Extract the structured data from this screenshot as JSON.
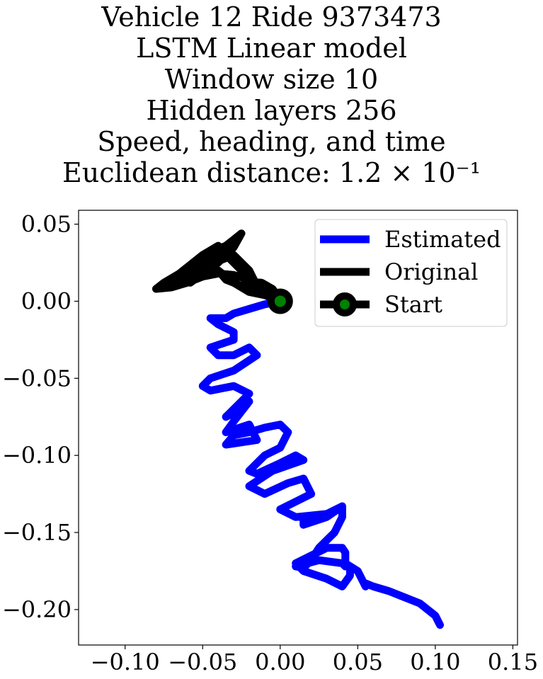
{
  "chart_data": {
    "type": "line",
    "title_lines": [
      "Vehicle 12 Ride 9373473",
      "LSTM Linear model",
      "Window size 10",
      "Hidden layers 256",
      "Speed, heading, and time",
      "Euclidean distance: 1.2 × 10⁻¹"
    ],
    "xlim": [
      -0.13,
      0.153
    ],
    "ylim": [
      -0.223,
      0.059
    ],
    "xticks": [
      -0.1,
      -0.05,
      0.0,
      0.05,
      0.1,
      0.15
    ],
    "xtick_labels": [
      "−0.10",
      "−0.05",
      "0.00",
      "0.05",
      "0.10",
      "0.15"
    ],
    "yticks": [
      0.05,
      0.0,
      -0.05,
      -0.1,
      -0.15,
      -0.2
    ],
    "ytick_labels": [
      "0.05",
      "0.00",
      "−0.05",
      "−0.10",
      "−0.15",
      "−0.20"
    ],
    "legend": {
      "placement": "top-right",
      "entries": [
        "Estimated",
        "Original",
        "Start"
      ]
    },
    "colors": {
      "estimated": "#0000ff",
      "original": "#000000",
      "start_marker_face": "#008000",
      "start_marker_edge": "#000000"
    },
    "series": [
      {
        "name": "Estimated",
        "x": [
          0.0,
          -0.01,
          -0.02,
          -0.03,
          -0.035,
          -0.045,
          -0.04,
          -0.03,
          -0.03,
          -0.045,
          -0.04,
          -0.03,
          -0.02,
          -0.015,
          -0.03,
          -0.045,
          -0.05,
          -0.045,
          -0.03,
          -0.02,
          -0.03,
          -0.035,
          -0.025,
          -0.02,
          -0.03,
          -0.035,
          -0.02,
          -0.015,
          -0.035,
          -0.03,
          -0.02,
          -0.01,
          0.0,
          0.005,
          0.0,
          -0.01,
          -0.02,
          -0.015,
          0.0,
          0.01,
          0.015,
          -0.005,
          -0.02,
          -0.01,
          0.005,
          0.015,
          0.02,
          0.01,
          0.0,
          0.01,
          0.03,
          0.04,
          0.03,
          0.015,
          0.015,
          0.03,
          0.04,
          0.04,
          0.035,
          0.025,
          0.02,
          0.015,
          0.01,
          0.025,
          0.04,
          0.042,
          0.042,
          0.04,
          0.03,
          0.02,
          0.01,
          0.015,
          0.03,
          0.04,
          0.045,
          0.045,
          0.042,
          0.05,
          0.055,
          0.055,
          0.06,
          0.07,
          0.08,
          0.09,
          0.1,
          0.103
        ],
        "y": [
          0.0,
          -0.002,
          -0.005,
          -0.008,
          -0.011,
          -0.011,
          -0.015,
          -0.02,
          -0.025,
          -0.03,
          -0.035,
          -0.035,
          -0.03,
          -0.035,
          -0.045,
          -0.05,
          -0.055,
          -0.058,
          -0.055,
          -0.06,
          -0.07,
          -0.075,
          -0.07,
          -0.065,
          -0.078,
          -0.085,
          -0.08,
          -0.09,
          -0.093,
          -0.087,
          -0.085,
          -0.082,
          -0.08,
          -0.085,
          -0.095,
          -0.1,
          -0.11,
          -0.112,
          -0.105,
          -0.1,
          -0.103,
          -0.11,
          -0.12,
          -0.125,
          -0.118,
          -0.115,
          -0.125,
          -0.13,
          -0.135,
          -0.14,
          -0.138,
          -0.133,
          -0.138,
          -0.14,
          -0.145,
          -0.14,
          -0.133,
          -0.14,
          -0.15,
          -0.16,
          -0.168,
          -0.173,
          -0.172,
          -0.168,
          -0.17,
          -0.172,
          -0.163,
          -0.16,
          -0.16,
          -0.165,
          -0.17,
          -0.175,
          -0.18,
          -0.185,
          -0.178,
          -0.172,
          -0.17,
          -0.175,
          -0.185,
          -0.183,
          -0.185,
          -0.188,
          -0.192,
          -0.196,
          -0.204,
          -0.21
        ]
      },
      {
        "name": "Original",
        "x": [
          0.0,
          -0.005,
          -0.012,
          -0.02,
          -0.03,
          -0.04,
          -0.05,
          -0.06,
          -0.07,
          -0.08,
          -0.075,
          -0.065,
          -0.055,
          -0.045,
          -0.035,
          -0.03,
          -0.025,
          -0.03,
          -0.04,
          -0.05,
          -0.058,
          -0.05,
          -0.04,
          -0.035,
          -0.03,
          -0.04,
          -0.05,
          -0.06,
          -0.07,
          -0.062,
          -0.055,
          -0.045,
          -0.04,
          -0.035,
          -0.03,
          -0.02,
          -0.015,
          -0.02,
          -0.03,
          -0.04,
          -0.05,
          -0.06,
          -0.07,
          -0.08,
          -0.07,
          -0.06,
          -0.05,
          -0.04,
          -0.03,
          -0.02,
          -0.015,
          -0.025,
          -0.035,
          -0.04,
          -0.03,
          -0.02,
          -0.01,
          -0.005,
          -0.015,
          -0.025,
          -0.02,
          -0.012,
          -0.005,
          -0.002,
          0.0
        ],
        "y": [
          0.0,
          0.006,
          0.01,
          0.014,
          0.017,
          0.018,
          0.016,
          0.012,
          0.009,
          0.008,
          0.012,
          0.018,
          0.026,
          0.032,
          0.036,
          0.04,
          0.044,
          0.035,
          0.025,
          0.018,
          0.012,
          0.018,
          0.026,
          0.032,
          0.038,
          0.03,
          0.022,
          0.016,
          0.01,
          0.016,
          0.024,
          0.03,
          0.034,
          0.03,
          0.025,
          0.015,
          0.01,
          0.02,
          0.03,
          0.026,
          0.02,
          0.016,
          0.012,
          0.008,
          0.014,
          0.022,
          0.03,
          0.036,
          0.026,
          0.016,
          0.008,
          0.01,
          0.014,
          0.02,
          0.012,
          0.006,
          0.004,
          0.002,
          0.006,
          0.01,
          0.013,
          0.012,
          0.008,
          0.004,
          0.0
        ]
      }
    ],
    "start_point": {
      "x": 0.0,
      "y": 0.0
    }
  }
}
